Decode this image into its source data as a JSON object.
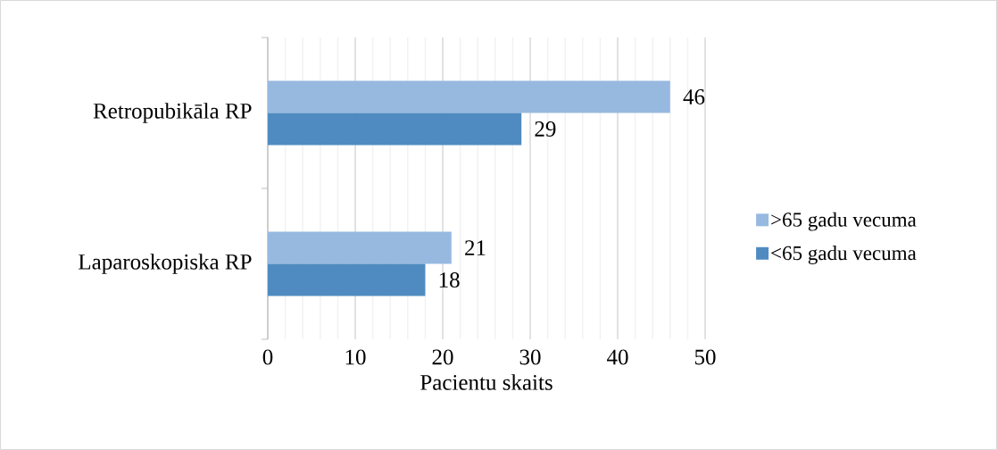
{
  "chart_data": {
    "type": "bar",
    "orientation": "horizontal",
    "categories": [
      "Retropubikāla RP",
      "Laparoskopiska RP"
    ],
    "series": [
      {
        "name": ">65 gadu vecuma",
        "color": "#97b9e0",
        "values": [
          46,
          21
        ]
      },
      {
        "name": "<65 gadu vecuma",
        "color": "#4f8bc0",
        "values": [
          29,
          18
        ]
      }
    ],
    "xlabel": "Pacientu skaits",
    "xlim": [
      0,
      50
    ],
    "xticks": [
      0,
      10,
      20,
      30,
      40,
      50
    ],
    "grid": "x",
    "legend": "right",
    "data_labels": true
  }
}
